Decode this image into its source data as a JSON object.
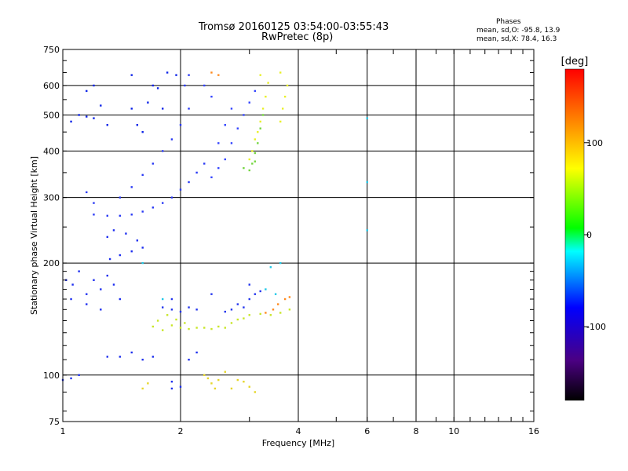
{
  "chart_data": {
    "type": "scatter",
    "title": "Tromsø 20160125 03:54:00-03:55:43",
    "subtitle": "RwPretec (8p)",
    "xlabel": "Frequency [MHz]",
    "ylabel": "Stationary phase Virtual Height [km]",
    "x_scale": "log",
    "y_scale": "log",
    "xlim": [
      1,
      16
    ],
    "ylim": [
      75,
      750
    ],
    "x_ticks": [
      "1",
      "2",
      "4",
      "6",
      "8",
      "10",
      "16"
    ],
    "y_ticks": [
      "75",
      "100",
      "200",
      "300",
      "400",
      "500",
      "600",
      "750"
    ],
    "grid": true,
    "legend": {
      "title": "Phases",
      "lines": [
        "mean, sd,O: -95.8, 13.9",
        "mean, sd,X:  78.4, 16.3"
      ]
    },
    "colorbar": {
      "unit_label": "[deg]",
      "range": [
        -180,
        180
      ],
      "ticks": [
        "100",
        "0",
        "-100"
      ],
      "colors": [
        "#000000",
        "#4b0082",
        "#0000ff",
        "#00ffff",
        "#00ff00",
        "#ffff00",
        "#ff8000",
        "#ff0000"
      ]
    },
    "series": [
      {
        "color": "#1e2ff0",
        "points": [
          [
            1.02,
            180
          ],
          [
            1.06,
            175
          ],
          [
            1.1,
            190
          ],
          [
            1.15,
            165
          ],
          [
            1.2,
            180
          ],
          [
            1.25,
            170
          ],
          [
            1.3,
            185
          ],
          [
            1.35,
            175
          ],
          [
            1.4,
            160
          ],
          [
            1.05,
            160
          ],
          [
            1.15,
            155
          ],
          [
            1.25,
            150
          ],
          [
            1.32,
            205
          ],
          [
            1.4,
            210
          ],
          [
            1.5,
            215
          ],
          [
            1.55,
            230
          ],
          [
            1.3,
            235
          ],
          [
            1.35,
            245
          ],
          [
            1.6,
            220
          ],
          [
            1.45,
            240
          ]
        ]
      },
      {
        "color": "#2a3af5",
        "points": [
          [
            1.2,
            270
          ],
          [
            1.3,
            268
          ],
          [
            1.4,
            268
          ],
          [
            1.5,
            270
          ],
          [
            1.6,
            275
          ],
          [
            1.7,
            282
          ],
          [
            1.8,
            290
          ],
          [
            1.9,
            300
          ],
          [
            2.0,
            315
          ],
          [
            2.1,
            330
          ],
          [
            2.2,
            350
          ],
          [
            2.3,
            370
          ],
          [
            1.4,
            300
          ],
          [
            1.5,
            320
          ],
          [
            1.6,
            345
          ],
          [
            1.7,
            370
          ],
          [
            1.8,
            400
          ],
          [
            1.9,
            430
          ],
          [
            2.0,
            470
          ],
          [
            2.1,
            520
          ],
          [
            2.05,
            600
          ],
          [
            2.1,
            640
          ],
          [
            1.15,
            310
          ],
          [
            1.2,
            290
          ]
        ]
      },
      {
        "color": "#0d24e8",
        "points": [
          [
            1.05,
            480
          ],
          [
            1.1,
            500
          ],
          [
            1.15,
            495
          ],
          [
            1.2,
            490
          ],
          [
            1.25,
            530
          ],
          [
            1.3,
            470
          ],
          [
            1.5,
            520
          ],
          [
            1.55,
            470
          ],
          [
            1.6,
            450
          ],
          [
            1.65,
            540
          ],
          [
            1.7,
            600
          ],
          [
            1.75,
            590
          ],
          [
            1.8,
            520
          ],
          [
            1.5,
            640
          ],
          [
            1.85,
            650
          ],
          [
            1.95,
            640
          ],
          [
            1.2,
            600
          ],
          [
            1.15,
            580
          ]
        ]
      },
      {
        "color": "#3344ff",
        "points": [
          [
            2.4,
            340
          ],
          [
            2.5,
            360
          ],
          [
            2.6,
            380
          ],
          [
            2.7,
            420
          ],
          [
            2.8,
            460
          ],
          [
            2.9,
            500
          ],
          [
            3.0,
            540
          ],
          [
            3.1,
            580
          ],
          [
            2.5,
            420
          ],
          [
            2.6,
            470
          ],
          [
            2.7,
            520
          ],
          [
            2.3,
            600
          ],
          [
            2.4,
            560
          ]
        ]
      },
      {
        "color": "#c8e628",
        "points": [
          [
            1.7,
            135
          ],
          [
            1.8,
            132
          ],
          [
            1.9,
            136
          ],
          [
            2.0,
            134
          ],
          [
            2.1,
            133
          ],
          [
            2.2,
            134
          ],
          [
            2.3,
            134
          ],
          [
            2.4,
            133
          ],
          [
            2.5,
            135
          ],
          [
            2.6,
            134
          ],
          [
            2.7,
            138
          ],
          [
            2.8,
            141
          ],
          [
            2.9,
            142
          ],
          [
            3.0,
            145
          ],
          [
            3.2,
            146
          ],
          [
            3.4,
            145
          ],
          [
            3.6,
            147
          ],
          [
            3.8,
            150
          ],
          [
            1.75,
            140
          ],
          [
            1.85,
            145
          ],
          [
            1.95,
            141
          ],
          [
            2.05,
            138
          ]
        ]
      },
      {
        "color": "#2436ee",
        "points": [
          [
            1.8,
            152
          ],
          [
            1.9,
            150
          ],
          [
            2.0,
            148
          ],
          [
            2.1,
            152
          ],
          [
            2.2,
            150
          ],
          [
            2.6,
            148
          ],
          [
            2.7,
            150
          ],
          [
            2.8,
            155
          ],
          [
            2.9,
            152
          ],
          [
            3.0,
            160
          ],
          [
            3.1,
            165
          ],
          [
            3.2,
            168
          ],
          [
            3.0,
            175
          ],
          [
            1.9,
            160
          ],
          [
            2.4,
            165
          ]
        ]
      },
      {
        "color": "#e8f028",
        "points": [
          [
            3.05,
            400
          ],
          [
            3.1,
            430
          ],
          [
            3.15,
            450
          ],
          [
            3.2,
            480
          ],
          [
            3.25,
            520
          ],
          [
            3.3,
            560
          ],
          [
            3.35,
            610
          ],
          [
            3.0,
            380
          ],
          [
            3.6,
            480
          ],
          [
            3.65,
            520
          ],
          [
            3.7,
            560
          ],
          [
            3.75,
            600
          ],
          [
            3.6,
            650
          ],
          [
            3.2,
            640
          ]
        ]
      },
      {
        "color": "#74d640",
        "points": [
          [
            3.05,
            370
          ],
          [
            3.1,
            395
          ],
          [
            3.15,
            420
          ],
          [
            3.2,
            460
          ],
          [
            3.25,
            500
          ],
          [
            2.9,
            360
          ],
          [
            3.0,
            355
          ],
          [
            3.1,
            375
          ]
        ]
      },
      {
        "color": "#1f31ee",
        "points": [
          [
            1.0,
            97
          ],
          [
            1.05,
            98
          ],
          [
            1.1,
            100
          ],
          [
            1.3,
            112
          ],
          [
            1.4,
            112
          ],
          [
            1.5,
            115
          ],
          [
            1.6,
            110
          ],
          [
            1.7,
            112
          ],
          [
            1.9,
            96
          ],
          [
            2.0,
            93
          ],
          [
            1.9,
            92
          ],
          [
            2.1,
            110
          ],
          [
            2.2,
            115
          ]
        ]
      },
      {
        "color": "#e6d629",
        "points": [
          [
            2.3,
            100
          ],
          [
            2.35,
            98
          ],
          [
            2.4,
            95
          ],
          [
            2.45,
            92
          ],
          [
            2.5,
            97
          ],
          [
            2.6,
            102
          ],
          [
            2.7,
            92
          ],
          [
            2.8,
            97
          ],
          [
            2.9,
            96
          ],
          [
            3.0,
            93
          ],
          [
            3.1,
            90
          ],
          [
            1.6,
            92
          ],
          [
            1.65,
            95
          ]
        ]
      },
      {
        "color": "#ff8a1e",
        "points": [
          [
            3.3,
            147
          ],
          [
            3.45,
            150
          ],
          [
            3.55,
            155
          ],
          [
            3.7,
            160
          ],
          [
            3.8,
            162
          ],
          [
            2.4,
            650
          ],
          [
            2.5,
            640
          ]
        ]
      },
      {
        "color": "#20c8e8",
        "points": [
          [
            1.8,
            160
          ],
          [
            3.3,
            170
          ],
          [
            3.5,
            165
          ],
          [
            3.6,
            200
          ],
          [
            3.4,
            195
          ],
          [
            1.6,
            200
          ],
          [
            6.0,
            490
          ],
          [
            6.0,
            330
          ],
          [
            6.0,
            245
          ]
        ]
      }
    ]
  }
}
